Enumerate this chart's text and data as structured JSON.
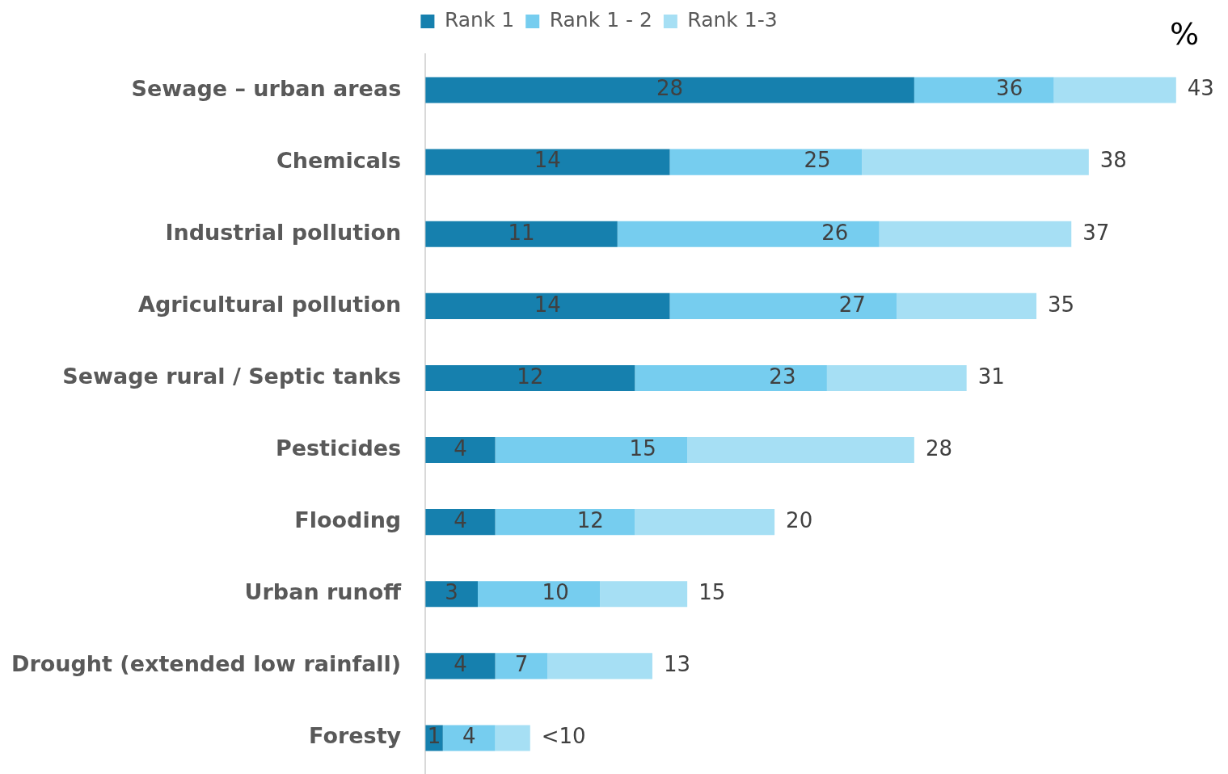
{
  "chart_data": {
    "type": "bar",
    "orientation": "horizontal",
    "stacked": true,
    "categories": [
      "Sewage – urban areas",
      "Chemicals",
      "Industrial pollution",
      "Agricultural pollution",
      "Sewage rural / Septic tanks",
      "Pesticides",
      "Flooding",
      "Urban runoff",
      "Drought (extended low rainfall)",
      "Foresty"
    ],
    "series": [
      {
        "name": "Rank 1",
        "color": "#1680ae",
        "values": [
          28,
          14,
          11,
          14,
          12,
          4,
          4,
          3,
          4,
          1
        ],
        "value_labels": [
          "28",
          "14",
          "11",
          "14",
          "12",
          "4",
          "4",
          "3",
          "4",
          "1"
        ]
      },
      {
        "name": "Rank 1 - 2",
        "color": "#76cdef",
        "values": [
          8,
          11,
          15,
          13,
          11,
          11,
          8,
          7,
          3,
          3
        ]
      },
      {
        "name": "Rank 1-3",
        "color": "#a6dff4",
        "values": [
          7,
          13,
          11,
          8,
          8,
          13,
          8,
          5,
          6,
          2
        ]
      }
    ],
    "totals": [
      "43",
      "38",
      "37",
      "35",
      "31",
      "28",
      "20",
      "15",
      "13",
      "<10"
    ],
    "tick_labels": "y",
    "legend": "top",
    "annotations": [
      "%",
      {
        "text": "36",
        "x": 36,
        "y": "Sewage – urban areas"
      },
      {
        "text": "25",
        "x": 25,
        "y": "Chemicals"
      },
      {
        "text": "26",
        "x": 26,
        "y": "Industrial pollution"
      },
      {
        "text": "27",
        "x": 27,
        "y": "Agricultural pollution"
      },
      {
        "text": "23",
        "x": 23,
        "y": "Sewage rural / Septic tanks"
      },
      {
        "text": "15",
        "x": 15,
        "y": "Pesticides"
      },
      {
        "text": "12",
        "x": 12,
        "y": "Flooding"
      },
      {
        "text": "10",
        "x": 10,
        "y": "Urban runoff"
      },
      {
        "text": "7",
        "x": 7,
        "y": "Drought (extended low rainfall)"
      },
      {
        "text": "4",
        "x": 4,
        "y": "Foresty"
      }
    ]
  }
}
